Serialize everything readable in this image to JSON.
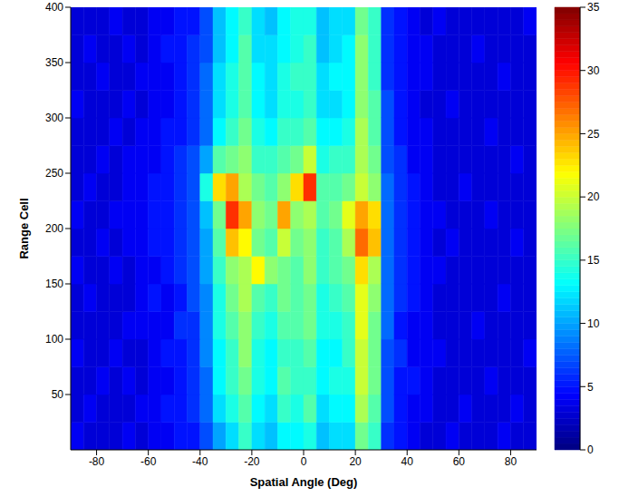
{
  "chart_data": {
    "type": "heatmap",
    "x_label": "Spatial Angle (Deg)",
    "y_label": "Range Cell",
    "xlim": [
      -90,
      90
    ],
    "xticks": [
      -80,
      -60,
      -40,
      -20,
      0,
      20,
      40,
      60,
      80
    ],
    "ylim": [
      0,
      400
    ],
    "yticks": [
      50,
      100,
      150,
      200,
      250,
      300,
      350,
      400
    ],
    "x_bins": [
      -90,
      -85,
      -80,
      -75,
      -70,
      -65,
      -60,
      -55,
      -50,
      -45,
      -40,
      -35,
      -30,
      -25,
      -20,
      -15,
      -10,
      -5,
      0,
      5,
      10,
      15,
      20,
      25,
      30,
      35,
      40,
      45,
      50,
      55,
      60,
      65,
      70,
      75,
      80,
      85,
      90
    ],
    "y_bins": [
      0,
      25,
      50,
      75,
      100,
      125,
      150,
      175,
      200,
      225,
      250,
      275,
      300,
      325,
      350,
      375,
      400
    ],
    "values": [
      [
        4,
        3,
        3,
        3,
        4,
        3,
        4,
        4,
        5,
        5,
        7,
        10,
        12,
        15,
        12,
        11,
        13,
        13,
        14,
        11,
        12,
        12,
        17,
        15,
        6,
        5,
        4,
        3,
        3,
        4,
        3,
        3,
        3,
        4,
        3,
        3
      ],
      [
        3,
        4,
        3,
        3,
        3,
        4,
        4,
        5,
        5,
        6,
        8,
        12,
        14,
        16,
        13,
        12,
        15,
        14,
        16,
        12,
        13,
        13,
        19,
        16,
        7,
        5,
        4,
        4,
        3,
        3,
        4,
        3,
        3,
        3,
        4,
        3
      ],
      [
        3,
        3,
        4,
        3,
        4,
        3,
        4,
        4,
        5,
        6,
        8,
        13,
        15,
        17,
        14,
        13,
        16,
        15,
        15,
        13,
        14,
        14,
        20,
        17,
        7,
        5,
        5,
        4,
        3,
        3,
        3,
        3,
        4,
        3,
        3,
        3
      ],
      [
        4,
        3,
        3,
        4,
        3,
        3,
        4,
        5,
        5,
        6,
        9,
        13,
        15,
        18,
        14,
        13,
        15,
        15,
        16,
        13,
        13,
        15,
        20,
        17,
        7,
        6,
        4,
        4,
        4,
        3,
        3,
        3,
        3,
        3,
        3,
        4
      ],
      [
        3,
        3,
        3,
        3,
        4,
        4,
        4,
        4,
        6,
        6,
        9,
        14,
        16,
        18,
        15,
        14,
        16,
        16,
        17,
        14,
        14,
        15,
        21,
        17,
        8,
        5,
        4,
        4,
        3,
        3,
        3,
        4,
        3,
        3,
        3,
        3
      ],
      [
        3,
        4,
        3,
        3,
        3,
        4,
        5,
        4,
        5,
        7,
        9,
        14,
        17,
        19,
        16,
        15,
        17,
        16,
        17,
        14,
        15,
        16,
        21,
        18,
        8,
        6,
        5,
        4,
        3,
        3,
        3,
        3,
        3,
        4,
        3,
        3
      ],
      [
        4,
        3,
        3,
        4,
        3,
        4,
        4,
        5,
        6,
        7,
        10,
        15,
        18,
        19,
        22,
        18,
        17,
        16,
        18,
        15,
        16,
        17,
        23,
        19,
        8,
        6,
        5,
        4,
        4,
        3,
        3,
        3,
        3,
        3,
        3,
        3
      ],
      [
        3,
        3,
        4,
        3,
        4,
        4,
        5,
        5,
        6,
        7,
        10,
        16,
        24,
        22,
        17,
        16,
        20,
        17,
        18,
        15,
        16,
        19,
        27,
        24,
        8,
        6,
        5,
        4,
        3,
        4,
        3,
        3,
        3,
        3,
        4,
        3
      ],
      [
        4,
        3,
        3,
        4,
        4,
        4,
        5,
        5,
        6,
        7,
        11,
        17,
        29,
        25,
        18,
        17,
        25,
        18,
        19,
        16,
        17,
        21,
        25,
        23,
        8,
        6,
        5,
        4,
        4,
        3,
        3,
        3,
        4,
        3,
        3,
        3
      ],
      [
        3,
        4,
        3,
        3,
        4,
        4,
        5,
        5,
        6,
        7,
        14,
        23,
        25,
        19,
        17,
        16,
        18,
        23,
        29,
        16,
        16,
        17,
        20,
        18,
        8,
        6,
        5,
        4,
        3,
        3,
        4,
        3,
        3,
        3,
        3,
        3
      ],
      [
        3,
        3,
        4,
        3,
        4,
        4,
        4,
        5,
        6,
        7,
        10,
        16,
        17,
        18,
        15,
        15,
        16,
        17,
        20,
        14,
        15,
        15,
        19,
        17,
        7,
        6,
        4,
        4,
        3,
        3,
        3,
        3,
        3,
        3,
        4,
        3
      ],
      [
        3,
        3,
        3,
        4,
        3,
        4,
        4,
        5,
        5,
        6,
        8,
        13,
        15,
        17,
        14,
        13,
        15,
        15,
        16,
        13,
        13,
        14,
        19,
        16,
        7,
        5,
        4,
        4,
        3,
        3,
        3,
        3,
        4,
        3,
        3,
        3
      ],
      [
        4,
        3,
        3,
        3,
        4,
        3,
        4,
        4,
        5,
        6,
        8,
        12,
        14,
        16,
        13,
        12,
        14,
        14,
        15,
        12,
        12,
        13,
        18,
        16,
        7,
        5,
        4,
        3,
        3,
        4,
        3,
        3,
        3,
        3,
        3,
        3
      ],
      [
        3,
        3,
        4,
        3,
        3,
        4,
        4,
        4,
        5,
        6,
        8,
        12,
        14,
        16,
        13,
        12,
        14,
        15,
        15,
        12,
        13,
        13,
        18,
        15,
        6,
        5,
        4,
        4,
        3,
        3,
        3,
        3,
        3,
        4,
        3,
        3
      ],
      [
        3,
        4,
        3,
        3,
        4,
        3,
        4,
        5,
        5,
        6,
        7,
        11,
        13,
        16,
        12,
        12,
        13,
        14,
        15,
        11,
        12,
        13,
        18,
        15,
        6,
        5,
        4,
        4,
        3,
        3,
        3,
        4,
        3,
        3,
        3,
        3
      ],
      [
        3,
        3,
        3,
        4,
        3,
        3,
        4,
        4,
        5,
        5,
        7,
        11,
        13,
        15,
        12,
        11,
        13,
        14,
        14,
        11,
        12,
        12,
        17,
        15,
        6,
        5,
        4,
        3,
        4,
        3,
        3,
        3,
        3,
        3,
        3,
        4
      ]
    ],
    "colorbar": {
      "range": [
        0,
        35
      ],
      "ticks": [
        0,
        5,
        10,
        15,
        20,
        25,
        30,
        35
      ]
    }
  }
}
